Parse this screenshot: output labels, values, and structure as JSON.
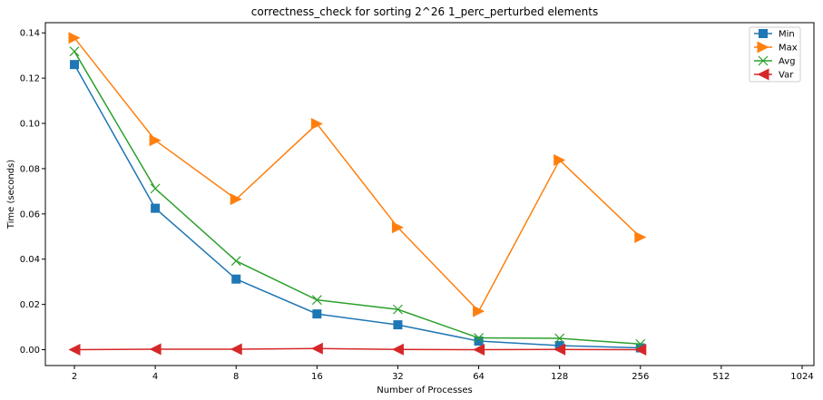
{
  "chart_data": {
    "type": "line",
    "title": "correctness_check for sorting 2^26 1_perc_perturbed elements",
    "xlabel": "Number of Processes",
    "ylabel": "Time (seconds)",
    "x_scale": "log2",
    "x_ticks": [
      "2",
      "4",
      "8",
      "16",
      "32",
      "64",
      "128",
      "256",
      "512",
      "1024"
    ],
    "y_ticks": [
      "0.00",
      "0.02",
      "0.04",
      "0.06",
      "0.08",
      "0.10",
      "0.12",
      "0.14"
    ],
    "xlim": [
      2,
      1024
    ],
    "ylim": [
      -0.007,
      0.1445
    ],
    "grid": false,
    "legend_position": "top-right",
    "x": [
      2,
      4,
      8,
      16,
      32,
      64,
      128,
      256
    ],
    "series": [
      {
        "name": "Min",
        "color": "#1f77b4",
        "marker": "square",
        "values": [
          0.126,
          0.0625,
          0.0312,
          0.0158,
          0.011,
          0.0038,
          0.0018,
          0.0008
        ]
      },
      {
        "name": "Max",
        "color": "#ff7f0e",
        "marker": "triangle-right",
        "values": [
          0.1378,
          0.0925,
          0.0665,
          0.0998,
          0.054,
          0.017,
          0.0838,
          0.0497
        ]
      },
      {
        "name": "Avg",
        "color": "#2ca02c",
        "marker": "x",
        "values": [
          0.1318,
          0.0712,
          0.0392,
          0.022,
          0.0178,
          0.0052,
          0.005,
          0.0025
        ]
      },
      {
        "name": "Var",
        "color": "#d62728",
        "marker": "triangle-left",
        "values": [
          0.0,
          0.0002,
          0.0002,
          0.0005,
          0.0001,
          0.0,
          0.0001,
          0.0
        ]
      }
    ]
  }
}
